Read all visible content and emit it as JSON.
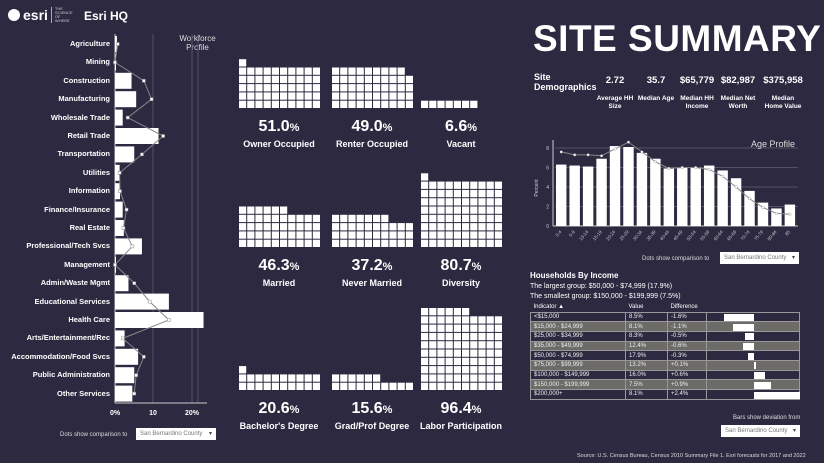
{
  "header": {
    "logo": "esri",
    "logo_tagline": "THE SCIENCE OF WHERE",
    "title": "Esri HQ",
    "page_title": "SITE SUMMARY"
  },
  "workforce": {
    "title": "Workforce Profile",
    "axis_ticks": [
      "0%",
      "10",
      "20%"
    ],
    "xlim": [
      0,
      23
    ],
    "industries": [
      {
        "label": "Agriculture",
        "value": 0.5,
        "comparison": 0.7
      },
      {
        "label": "Mining",
        "value": 0.2,
        "comparison": 0
      },
      {
        "label": "Construction",
        "value": 4.3,
        "comparison": 7.5
      },
      {
        "label": "Manufacturing",
        "value": 5.5,
        "comparison": 9.5
      },
      {
        "label": "Wholesale Trade",
        "value": 2,
        "comparison": 3.3
      },
      {
        "label": "Retail Trade",
        "value": 11.3,
        "comparison": 12.5
      },
      {
        "label": "Transportation",
        "value": 5,
        "comparison": 7
      },
      {
        "label": "Utilities",
        "value": 1.2,
        "comparison": 1.2
      },
      {
        "label": "Information",
        "value": 1.3,
        "comparison": 1.3
      },
      {
        "label": "Finance/Insurance",
        "value": 2,
        "comparison": 3
      },
      {
        "label": "Real Estate",
        "value": 2.3,
        "comparison": 2.2
      },
      {
        "label": "Professional/Tech Svcs",
        "value": 7,
        "comparison": 4.5
      },
      {
        "label": "Management",
        "value": 0.2,
        "comparison": 0
      },
      {
        "label": "Admin/Waste Mgmt",
        "value": 3.5,
        "comparison": 5
      },
      {
        "label": "Educational Services",
        "value": 14,
        "comparison": 9
      },
      {
        "label": "Health Care",
        "value": 23,
        "comparison": 14
      },
      {
        "label": "Arts/Entertainment/Rec",
        "value": 2.5,
        "comparison": 2
      },
      {
        "label": "Accommodation/Food Svcs",
        "value": 6,
        "comparison": 7.5
      },
      {
        "label": "Public Administration",
        "value": 5,
        "comparison": 5.5
      },
      {
        "label": "Other Services",
        "value": 4.5,
        "comparison": 5
      }
    ],
    "comparison_label": "Dots show comparison to",
    "comparison_value": "San Bernardino County"
  },
  "waffles": [
    {
      "value": 51.0,
      "pct": "51.0",
      "label": "Owner Occupied"
    },
    {
      "value": 49.0,
      "pct": "49.0",
      "label": "Renter Occupied"
    },
    {
      "value": 6.6,
      "pct": "6.6",
      "label": "Vacant"
    },
    {
      "value": 46.3,
      "pct": "46.3",
      "label": "Married"
    },
    {
      "value": 37.2,
      "pct": "37.2",
      "label": "Never Married"
    },
    {
      "value": 80.7,
      "pct": "80.7",
      "label": "Diversity"
    },
    {
      "value": 20.6,
      "pct": "20.6",
      "label": "Bachelor's Degree"
    },
    {
      "value": 15.6,
      "pct": "15.6",
      "label": "Grad/Prof Degree"
    },
    {
      "value": 96.4,
      "pct": "96.4",
      "label": "Labor Participation"
    }
  ],
  "pct_sign": "%",
  "demographics": {
    "title": "Site Demographics",
    "items": [
      {
        "value": "2.72",
        "label": "Average HH Size"
      },
      {
        "value": "35.7",
        "label": "Median Age"
      },
      {
        "value": "$65,779",
        "label": "Median HH Income"
      },
      {
        "value": "$82,987",
        "label": "Median Net Worth"
      },
      {
        "value": "$375,958",
        "label": "Median Home Value"
      }
    ]
  },
  "chart_data": {
    "type": "bar",
    "title": "Age Profile",
    "ylabel": "Percent",
    "ylim": [
      0,
      9
    ],
    "yticks": [
      "0",
      "2",
      "4",
      "6",
      "8"
    ],
    "grid": true,
    "categories": [
      "0-4",
      "5-9",
      "10-14",
      "15-19",
      "20-24",
      "25-29",
      "30-34",
      "35-39",
      "40-44",
      "45-49",
      "50-54",
      "55-59",
      "60-64",
      "65-69",
      "70-74",
      "75-79",
      "80-84",
      "85"
    ],
    "values": [
      6.3,
      6.2,
      6.1,
      6.9,
      8.2,
      8.1,
      7.5,
      6.9,
      5.9,
      6.0,
      6.0,
      6.2,
      5.7,
      4.9,
      3.6,
      2.4,
      1.8,
      2.2
    ],
    "comparison": [
      7.6,
      7.3,
      7.3,
      7.2,
      7.9,
      8.6,
      7.6,
      6.6,
      5.9,
      6.0,
      6.0,
      5.8,
      5.1,
      4.0,
      2.8,
      1.9,
      1.3,
      1.2
    ]
  },
  "age_comparison_label": "Dots show comparison to",
  "age_comparison_value": "San Bernardino County",
  "income": {
    "title": "Households By Income",
    "largest": "The largest group: $50,000 - $74,999 (17.9%)",
    "smallest": "The smallest group: $150,000 - $199,999 (7.5%)",
    "columns": [
      "Indicator ▲",
      "Value",
      "Difference"
    ],
    "rows": [
      {
        "indicator": "<$15,000",
        "value": "8.5%",
        "difference": "-1.6%",
        "diff": -1.6
      },
      {
        "indicator": "$15,000 - $24,999",
        "value": "8.1%",
        "difference": "-1.1%",
        "diff": -1.1
      },
      {
        "indicator": "$25,000 - $34,999",
        "value": "8.3%",
        "difference": "-0.5%",
        "diff": -0.5
      },
      {
        "indicator": "$35,000 - $49,999",
        "value": "12.4%",
        "difference": "-0.6%",
        "diff": -0.6
      },
      {
        "indicator": "$50,000 - $74,999",
        "value": "17.9%",
        "difference": "-0.3%",
        "diff": -0.3
      },
      {
        "indicator": "$75,000 - $99,999",
        "value": "13.2%",
        "difference": "+0.1%",
        "diff": 0.1
      },
      {
        "indicator": "$100,000 - $149,999",
        "value": "16.0%",
        "difference": "+0.6%",
        "diff": 0.6
      },
      {
        "indicator": "$150,000 - $199,999",
        "value": "7.5%",
        "difference": "+0.9%",
        "diff": 0.9
      },
      {
        "indicator": "$200,000+",
        "value": "8.1%",
        "difference": "+2.4%",
        "diff": 2.4
      }
    ],
    "deviation_label": "Bars show deviation from",
    "deviation_value": "San Bernardino County"
  },
  "source": "Source: U.S. Census Bureau, Census 2010 Summary File 1. Esri forecasts for 2017 and 2022",
  "colors": {
    "background": "#2c2940",
    "bar": "#ffffff",
    "alt_row": "#6c6b68",
    "comparison_line": "#888888"
  }
}
